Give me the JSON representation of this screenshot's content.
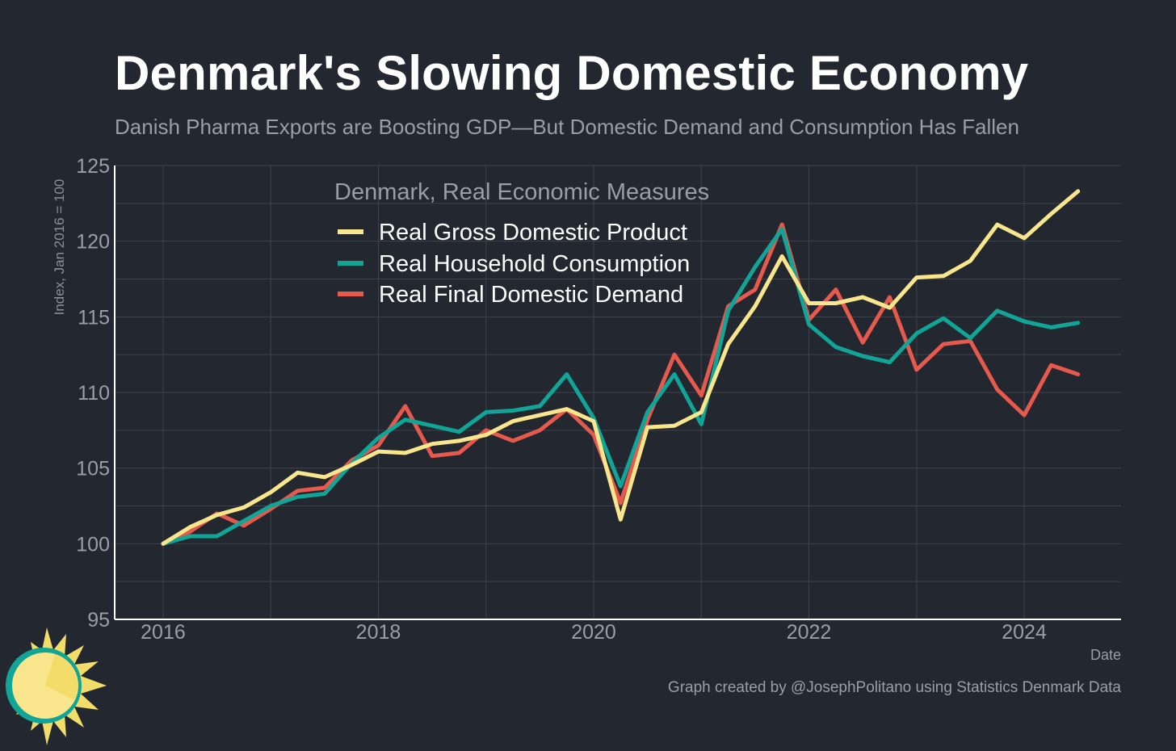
{
  "header": {
    "title": "Denmark's Slowing Domestic Economy",
    "subtitle": "Danish Pharma Exports are Boosting GDP—But Domestic Demand and Consumption Has Fallen"
  },
  "footer": {
    "caption": "Graph created by @JosephPolitano using Statistics Denmark Data"
  },
  "colors": {
    "background": "#23272f",
    "grid": "#3e434c",
    "axis": "#ffffff",
    "gdp": "#f8e58c",
    "consumption": "#10a596",
    "demand": "#e6594c"
  },
  "logo": {
    "icon": "sun-logo-icon"
  },
  "chart_data": {
    "type": "line",
    "title": "Denmark's Slowing Domestic Economy",
    "subtitle": "Danish Pharma Exports are Boosting GDP—But Domestic Demand and Consumption Has Fallen",
    "xlabel": "Date",
    "ylabel": "Index, Jan 2016 = 100",
    "xlim": [
      2015.55,
      2024.9
    ],
    "ylim": [
      95,
      125
    ],
    "xticks": [
      2016,
      2018,
      2020,
      2022,
      2024
    ],
    "xtick_labels": [
      "2016",
      "2018",
      "2020",
      "2022",
      "2024"
    ],
    "yticks": [
      95,
      100,
      105,
      110,
      115,
      120,
      125
    ],
    "ytick_labels": [
      "95",
      "100",
      "105",
      "110",
      "115",
      "120",
      "125"
    ],
    "grid": true,
    "legend_title": "Denmark, Real Economic Measures",
    "legend_position": "top-center",
    "x": [
      2016.0,
      2016.25,
      2016.5,
      2016.75,
      2017.0,
      2017.25,
      2017.5,
      2017.75,
      2018.0,
      2018.25,
      2018.5,
      2018.75,
      2019.0,
      2019.25,
      2019.5,
      2019.75,
      2020.0,
      2020.25,
      2020.5,
      2020.75,
      2021.0,
      2021.25,
      2021.5,
      2021.75,
      2022.0,
      2022.25,
      2022.5,
      2022.75,
      2023.0,
      2023.25,
      2023.5,
      2023.75,
      2024.0,
      2024.25,
      2024.5
    ],
    "series": [
      {
        "name": "Real Gross Domestic Product",
        "color": "#f8e58c",
        "values": [
          100.0,
          101.1,
          101.9,
          102.4,
          103.4,
          104.7,
          104.4,
          105.2,
          106.1,
          106.0,
          106.6,
          106.8,
          107.2,
          108.1,
          108.5,
          108.9,
          108.1,
          101.6,
          107.7,
          107.8,
          108.7,
          113.2,
          115.7,
          119.0,
          115.9,
          115.9,
          116.3,
          115.6,
          117.6,
          117.7,
          118.7,
          121.1,
          120.2,
          121.8,
          123.3
        ]
      },
      {
        "name": "Real Household Consumption",
        "color": "#10a596",
        "values": [
          100.0,
          100.5,
          100.5,
          101.5,
          102.5,
          103.1,
          103.3,
          105.3,
          107.0,
          108.2,
          107.8,
          107.4,
          108.7,
          108.8,
          109.1,
          111.2,
          108.3,
          103.8,
          108.7,
          111.2,
          107.9,
          115.4,
          118.3,
          120.8,
          114.5,
          113.0,
          112.4,
          112.0,
          113.9,
          114.9,
          113.6,
          115.4,
          114.7,
          114.3,
          114.6
        ]
      },
      {
        "name": "Real Final Domestic Demand",
        "color": "#e6594c",
        "values": [
          100.0,
          100.8,
          102.0,
          101.2,
          102.3,
          103.5,
          103.7,
          105.5,
          106.5,
          109.1,
          105.8,
          106.0,
          107.5,
          106.8,
          107.5,
          108.9,
          107.2,
          102.7,
          108.2,
          112.5,
          109.8,
          115.7,
          116.8,
          121.1,
          114.8,
          116.8,
          113.3,
          116.3,
          111.5,
          113.2,
          113.4,
          110.2,
          108.5,
          111.8,
          111.2
        ]
      }
    ]
  }
}
